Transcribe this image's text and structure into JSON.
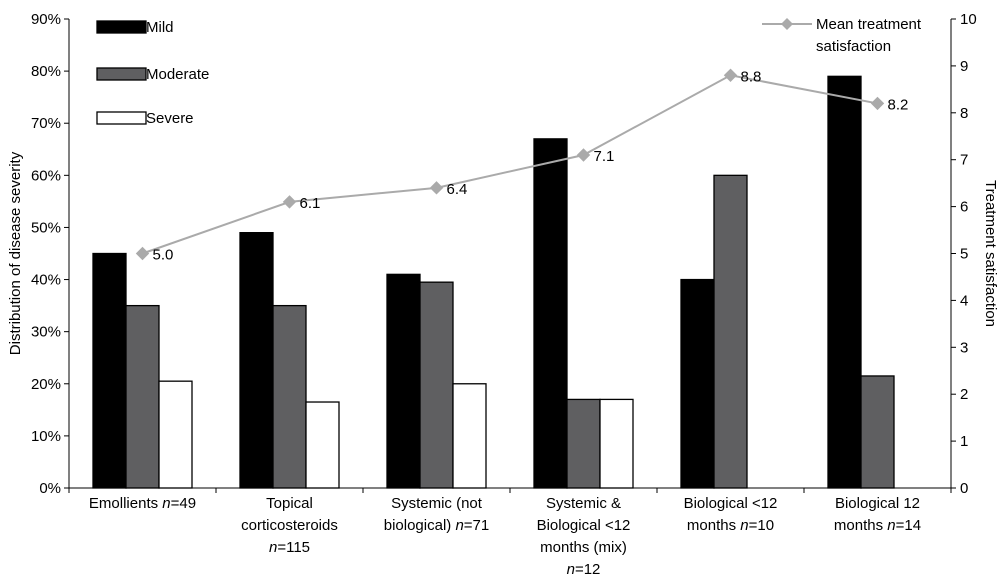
{
  "chart_data": {
    "type": "bar",
    "categories": [
      {
        "lines": [
          {
            "t": "Emollients ",
            "i": false
          },
          {
            "t": "n",
            "i": true
          },
          {
            "t": "=49",
            "i": false
          }
        ]
      },
      {
        "lines": [
          [
            {
              "t": "Topical",
              "i": false
            }
          ],
          [
            {
              "t": "corticosteroids",
              "i": false
            }
          ],
          [
            {
              "t": "n",
              "i": true
            },
            {
              "t": "=115",
              "i": false
            }
          ]
        ]
      },
      {
        "lines": [
          [
            {
              "t": "Systemic (not",
              "i": false
            }
          ],
          [
            {
              "t": "biological) ",
              "i": false
            },
            {
              "t": "n",
              "i": true
            },
            {
              "t": "=71",
              "i": false
            }
          ]
        ]
      },
      {
        "lines": [
          [
            {
              "t": "Systemic &",
              "i": false
            }
          ],
          [
            {
              "t": "Biological <12",
              "i": false
            }
          ],
          [
            {
              "t": "months (mix)",
              "i": false
            }
          ],
          [
            {
              "t": "n",
              "i": true
            },
            {
              "t": "=12",
              "i": false
            }
          ]
        ]
      },
      {
        "lines": [
          [
            {
              "t": "Biological <12",
              "i": false
            }
          ],
          [
            {
              "t": "months ",
              "i": false
            },
            {
              "t": "n",
              "i": true
            },
            {
              "t": "=10",
              "i": false
            }
          ]
        ]
      },
      {
        "lines": [
          [
            {
              "t": "Biological 12",
              "i": false
            }
          ],
          [
            {
              "t": "months ",
              "i": false
            },
            {
              "t": "n",
              "i": true
            },
            {
              "t": "=14",
              "i": false
            }
          ]
        ]
      }
    ],
    "series": [
      {
        "name": "Mild",
        "color": "#000000",
        "values": [
          45,
          49,
          41,
          67,
          40,
          79
        ]
      },
      {
        "name": "Moderate",
        "color": "#5f5f61",
        "values": [
          35,
          35,
          39.5,
          17,
          60,
          21.5
        ]
      },
      {
        "name": "Severe",
        "color": "#ffffff",
        "values": [
          20.5,
          16.5,
          20,
          17,
          0,
          0
        ]
      }
    ],
    "line_series": {
      "name": "Mean treatment satisfaction",
      "color": "#aaaaaa",
      "values": [
        5.0,
        6.1,
        6.4,
        7.1,
        8.8,
        8.2
      ],
      "labels": [
        "5.0",
        "6.1",
        "6.4",
        "7.1",
        "8.8",
        "8.2"
      ]
    },
    "ylabel": "Distribution of disease severity",
    "y2label": "Treatment satisfaction",
    "ylim": [
      0,
      90
    ],
    "y2lim": [
      0,
      10
    ],
    "yticks": [
      "0%",
      "10%",
      "20%",
      "30%",
      "40%",
      "50%",
      "60%",
      "70%",
      "80%",
      "90%"
    ],
    "y2ticks": [
      "0",
      "1",
      "2",
      "3",
      "4",
      "5",
      "6",
      "7",
      "8",
      "9",
      "10"
    ],
    "legend_left": [
      "Mild",
      "Moderate",
      "Severe"
    ],
    "legend_right": [
      "Mean treatment",
      "satisfaction"
    ],
    "grid": false
  }
}
